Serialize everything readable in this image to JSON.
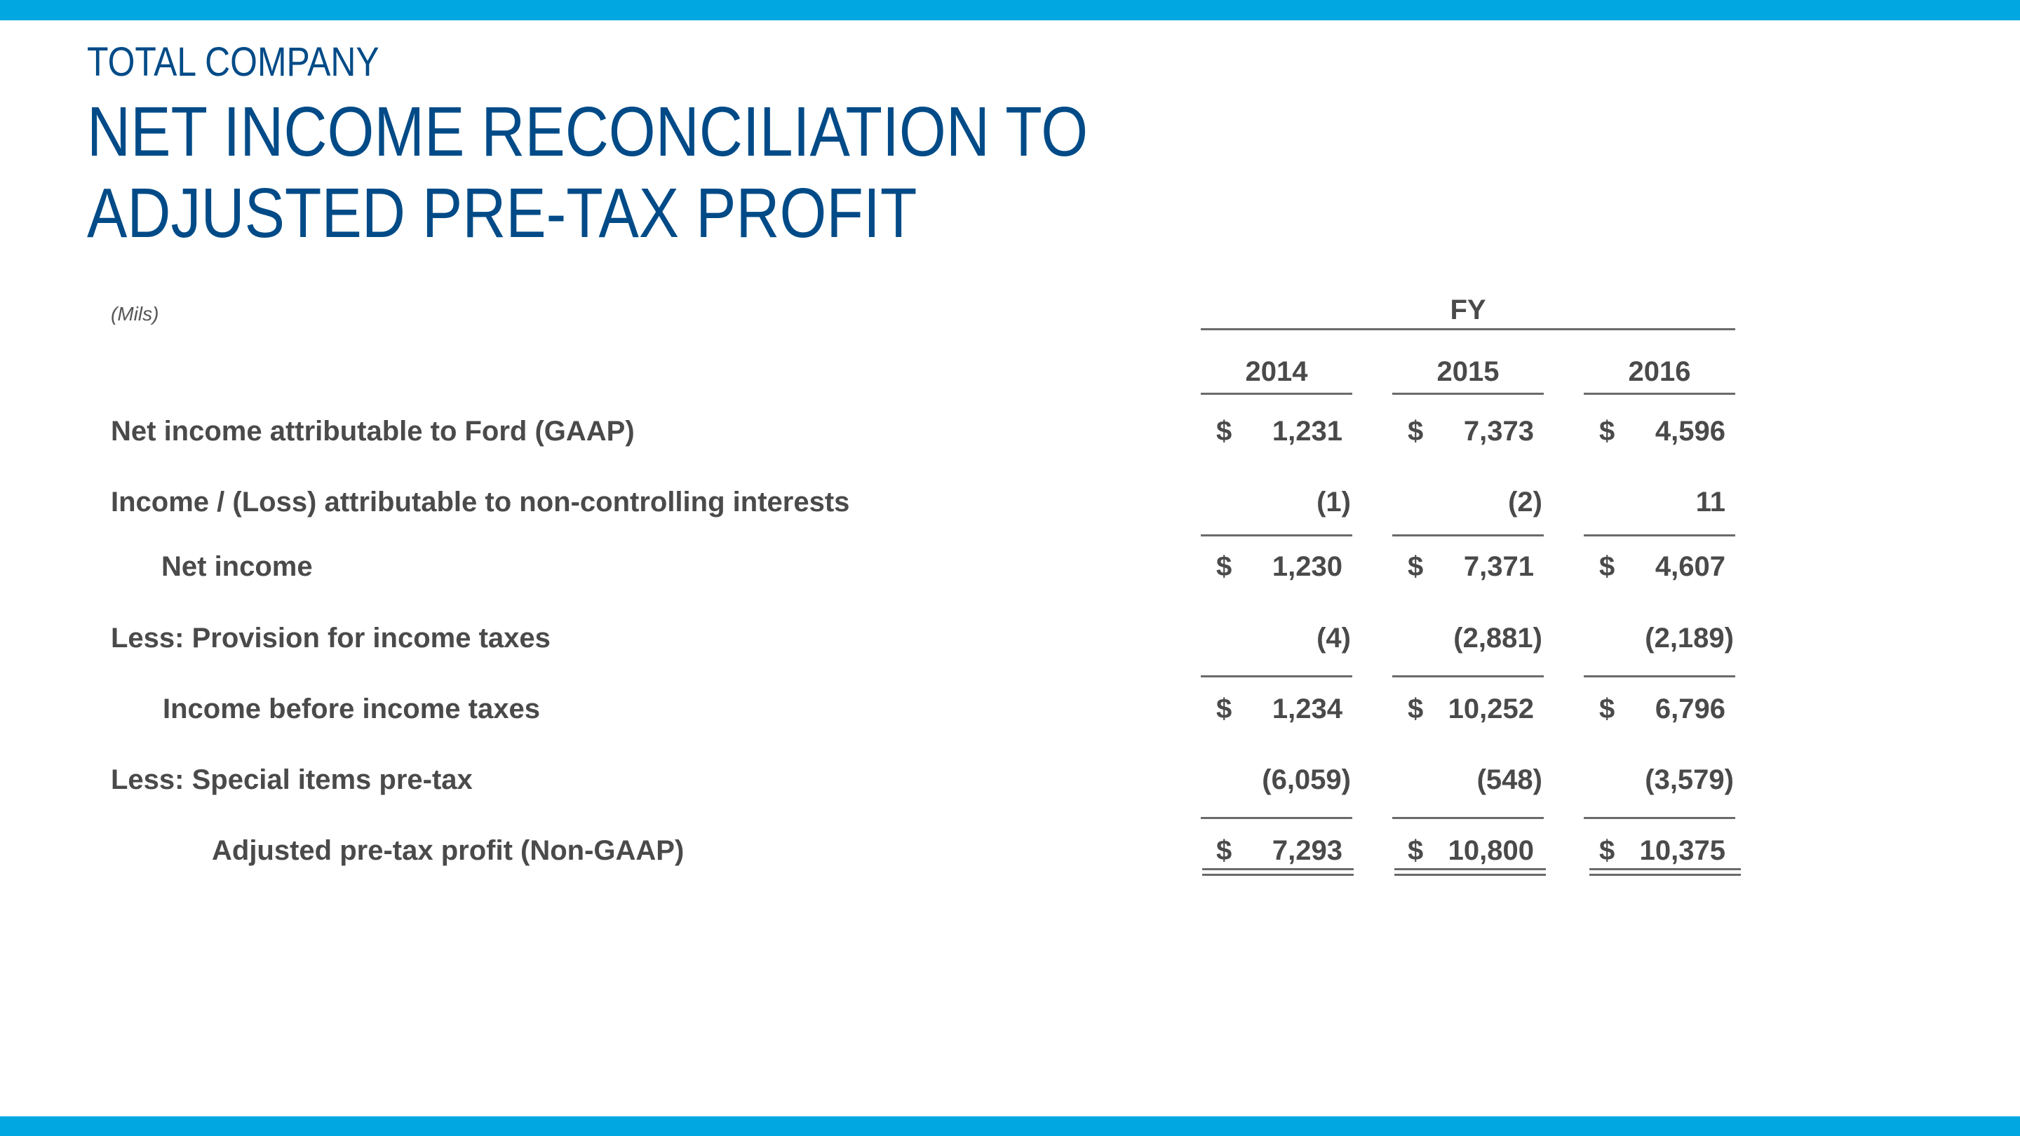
{
  "header": {
    "eyebrow": "TOTAL COMPANY",
    "title_line1": "NET INCOME RECONCILIATION TO",
    "title_line2": "ADJUSTED PRE-TAX PROFIT"
  },
  "table": {
    "units": "(Mils)",
    "period_label": "FY",
    "years": [
      "2014",
      "2015",
      "2016"
    ],
    "rows": [
      {
        "label": "Net income attributable to Ford (GAAP)",
        "values": [
          {
            "cur": "$",
            "num": "1,231"
          },
          {
            "cur": "$",
            "num": "7,373"
          },
          {
            "cur": "$",
            "num": "4,596"
          }
        ]
      },
      {
        "label": "Income / (Loss) attributable to non-controlling interests",
        "values": [
          {
            "cur": "",
            "num": "(1)"
          },
          {
            "cur": "",
            "num": "(2)"
          },
          {
            "cur": "",
            "num": "11"
          }
        ]
      },
      {
        "label": "Net income",
        "values": [
          {
            "cur": "$",
            "num": "1,230"
          },
          {
            "cur": "$",
            "num": "7,371"
          },
          {
            "cur": "$",
            "num": "4,607"
          }
        ]
      },
      {
        "label": "Less:  Provision for income taxes",
        "values": [
          {
            "cur": "",
            "num": "(4)"
          },
          {
            "cur": "",
            "num": "(2,881)"
          },
          {
            "cur": "",
            "num": "(2,189)"
          }
        ]
      },
      {
        "label": "Income before income taxes",
        "values": [
          {
            "cur": "$",
            "num": "1,234"
          },
          {
            "cur": "$",
            "num": "10,252"
          },
          {
            "cur": "$",
            "num": "6,796"
          }
        ]
      },
      {
        "label": "Less:  Special items pre-tax",
        "values": [
          {
            "cur": "",
            "num": "(6,059)"
          },
          {
            "cur": "",
            "num": "(548)"
          },
          {
            "cur": "",
            "num": "(3,579)"
          }
        ]
      },
      {
        "label": "Adjusted pre-tax profit (Non-GAAP)",
        "values": [
          {
            "cur": "$",
            "num": "7,293"
          },
          {
            "cur": "$",
            "num": "10,800"
          },
          {
            "cur": "$",
            "num": "10,375"
          }
        ]
      }
    ]
  },
  "colors": {
    "accent_bar": "#00A7E1",
    "title": "#004B87",
    "table_text": "#4a4a4a"
  }
}
